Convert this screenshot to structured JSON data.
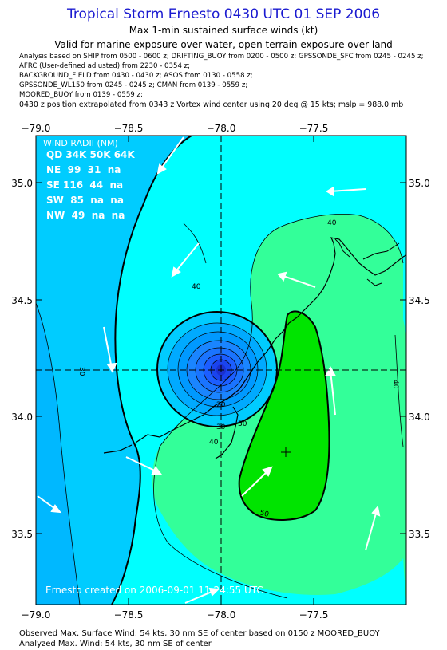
{
  "header": {
    "title": "Tropical Storm Ernesto 0430 UTC 01 SEP 2006",
    "subtitle1": "Max 1-min sustained surface winds (kt)",
    "subtitle2": "Valid for marine exposure over water, open terrain exposure over land"
  },
  "analysis_lines": [
    "Analysis based on  SHIP from 0500 - 0600 z;  DRIFTING_BUOY from 0200 - 0500 z;  GPSSONDE_SFC from 0245 - 0245 z;",
    "AFRC  (User-defined adjusted) from  2230 - 0354 z;",
    "BACKGROUND_FIELD from 0430 - 0430 z;  ASOS from 0130 - 0558 z;",
    "GPSSONDE_WL150 from 0245 - 0245 z;  CMAN from 0139 - 0559 z;",
    "MOORED_BUOY from 0139 - 0559 z;"
  ],
  "position_note": "0430 z position extrapolated from 0343 z Vortex wind center using 20 deg @ 15 kts; mslp = 988.0 mb",
  "map": {
    "lon_ticks": [
      "−79.0",
      "−78.5",
      "−78.0",
      "−77.5"
    ],
    "lat_ticks": [
      "35.0",
      "34.5",
      "34.0",
      "33.5"
    ],
    "contour_labels": [
      "40",
      "40",
      "30",
      "30",
      "20",
      "30",
      "40",
      "50",
      "40"
    ],
    "credit": "Ernesto  created on 2006-09-01 11:24:55 UTC",
    "colors": {
      "lt20": "#1a74ff",
      "c20_30": "#00b8ff",
      "c30_40": "#00ffff",
      "c40_50": "#33ff99",
      "c50_plus": "#00e400",
      "outer_light": "#00ccff",
      "coast": "#000000",
      "arrows": "#ffffff"
    }
  },
  "wind_radii": {
    "title": "WIND RADII (NM)",
    "header": "QD 34K 50K 64K",
    "rows": [
      "NE  99  31  na",
      "SE 116  44  na",
      "SW  85  na  na",
      "NW  49  na  na"
    ]
  },
  "footer": {
    "line1": "Observed Max. Surface Wind: 54 kts, 30 nm SE of center based on 0150 z MOORED_BUOY",
    "line2": "Analyzed Max. Wind: 54 kts, 30 nm SE of center"
  }
}
